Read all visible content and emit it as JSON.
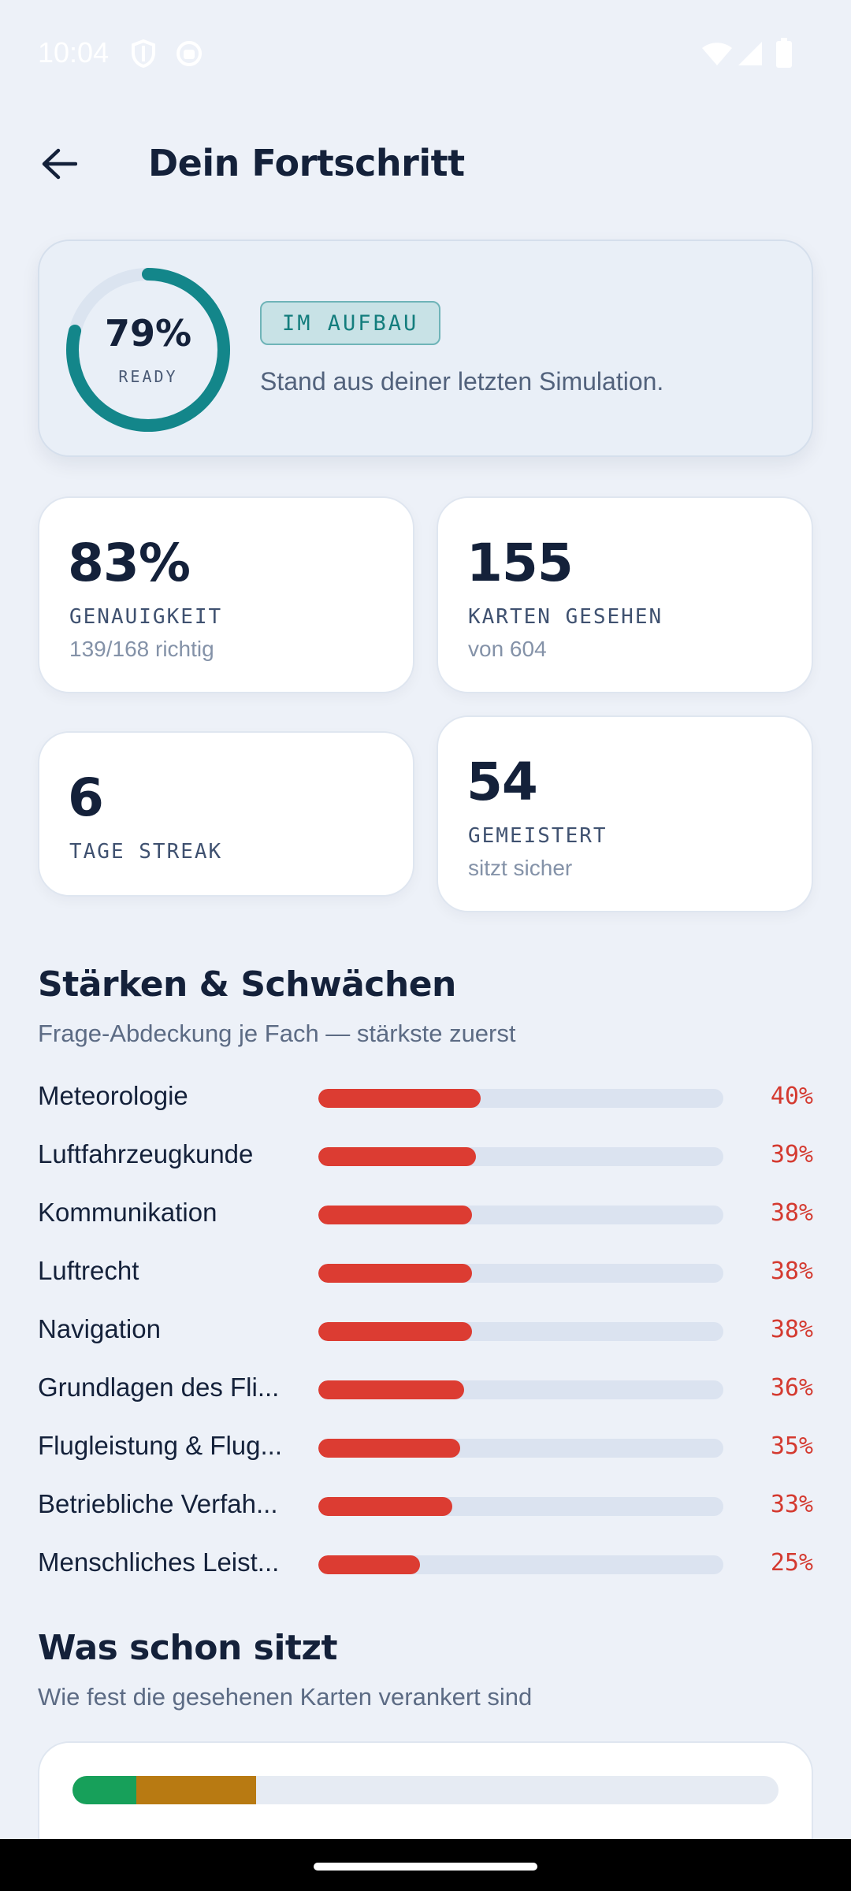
{
  "status_bar": {
    "time": "10:04",
    "icons": [
      "shield-icon",
      "app-icon",
      "wifi-icon",
      "signal-icon",
      "battery-icon"
    ]
  },
  "header": {
    "back_icon": "arrow-left-icon",
    "title": "Dein Fortschritt"
  },
  "readiness": {
    "value_text": "79%",
    "value": 0.79,
    "label": "READY",
    "badge": "IM AUFBAU",
    "subtitle": "Stand aus deiner letzten Simulation."
  },
  "stats": {
    "accuracy": {
      "value": "83%",
      "label": "GENAUIGKEIT",
      "sub": "139/168 richtig"
    },
    "cards_seen": {
      "value": "155",
      "label": "KARTEN GESEHEN",
      "sub": "von 604"
    },
    "streak": {
      "value": "6",
      "label": "TAGE STREAK"
    },
    "mastered": {
      "value": "54",
      "label": "GEMEISTERT",
      "sub": "sitzt sicher"
    }
  },
  "strengths": {
    "title": "Stärken & Schwächen",
    "subtitle": "Frage-Abdeckung je Fach — stärkste zuerst",
    "subjects": [
      {
        "name": "Meteorologie",
        "pct_text": "40%",
        "pct": 40
      },
      {
        "name": "Luftfahrzeugkunde",
        "pct_text": "39%",
        "pct": 39
      },
      {
        "name": "Kommunikation",
        "pct_text": "38%",
        "pct": 38
      },
      {
        "name": "Luftrecht",
        "pct_text": "38%",
        "pct": 38
      },
      {
        "name": "Navigation",
        "pct_text": "38%",
        "pct": 38
      },
      {
        "name": "Grundlagen des Fli...",
        "pct_text": "36%",
        "pct": 36
      },
      {
        "name": "Flugleistung & Flug...",
        "pct_text": "35%",
        "pct": 35
      },
      {
        "name": "Betriebliche Verfah...",
        "pct_text": "33%",
        "pct": 33
      },
      {
        "name": "Menschliches Leist...",
        "pct_text": "25%",
        "pct": 25
      }
    ]
  },
  "mastery": {
    "title": "Was schon sitzt",
    "subtitle": "Wie fest die gesehenen Karten verankert sind",
    "segments": [
      {
        "fraction": 0.09,
        "color": "#17a05a"
      },
      {
        "fraction": 0.17,
        "color": "#b87a12"
      }
    ]
  },
  "colors": {
    "accent": "#13868a",
    "weak": "#dc3c32",
    "background": "#edf1f8"
  }
}
